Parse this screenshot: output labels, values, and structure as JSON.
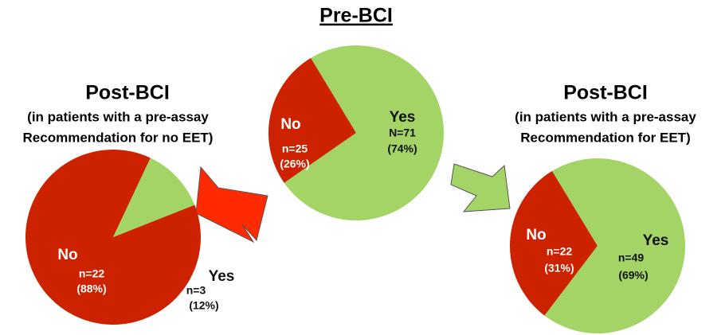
{
  "chart_data": [
    {
      "type": "pie",
      "title": "Pre-BCI",
      "categories": [
        "No",
        "Yes"
      ],
      "values": [
        25,
        71
      ],
      "value_labels": [
        "n=25",
        "N=71"
      ],
      "percentages": [
        26,
        74
      ],
      "percent_labels": [
        "(26%)",
        "(74%)"
      ],
      "colors": [
        "#cc2200",
        "#a3d465"
      ]
    },
    {
      "type": "pie",
      "title": "Post-BCI",
      "subtitle": [
        "(in patients with a pre-assay",
        "Recommendation for no EET)"
      ],
      "categories": [
        "No",
        "Yes"
      ],
      "values": [
        22,
        3
      ],
      "value_labels": [
        "n=22",
        "n=3"
      ],
      "percentages": [
        88,
        12
      ],
      "percent_labels": [
        "(88%)",
        "(12%)"
      ],
      "colors": [
        "#cc2200",
        "#a3d465"
      ]
    },
    {
      "type": "pie",
      "title": "Post-BCI",
      "subtitle": [
        "(in patients with a pre-assay",
        "Recommendation for EET)"
      ],
      "categories": [
        "No",
        "Yes"
      ],
      "values": [
        22,
        49
      ],
      "value_labels": [
        "n=22",
        "n=49"
      ],
      "percentages": [
        31,
        69
      ],
      "percent_labels": [
        "(31%)",
        "(69%)"
      ],
      "colors": [
        "#cc2200",
        "#a3d465"
      ]
    }
  ]
}
